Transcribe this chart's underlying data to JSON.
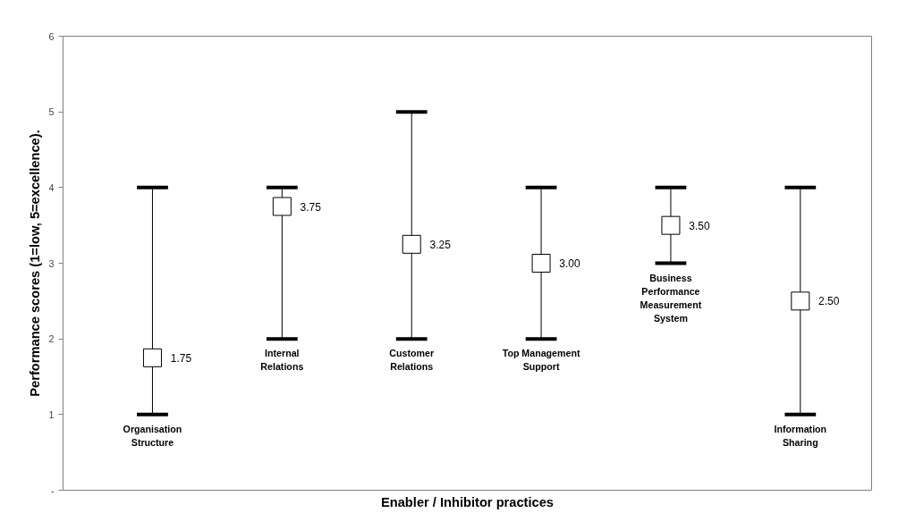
{
  "chart_data": {
    "type": "scatter",
    "xlabel": "Enabler / Inhibitor practices",
    "ylabel": "Performance scores (1=low, 5=excellence).",
    "categories": [
      "Organisation Structure",
      "Internal Relations",
      "Customer Relations",
      "Top Management Support",
      "Business Performance Measurement System",
      "Information Sharing"
    ],
    "values": [
      1.75,
      3.75,
      3.25,
      3.0,
      3.5,
      2.5
    ],
    "errors": [
      [
        1,
        4
      ],
      [
        2,
        4
      ],
      [
        2,
        5
      ],
      [
        2,
        4
      ],
      [
        3,
        4
      ],
      [
        1,
        4
      ]
    ],
    "value_labels": [
      "1.75",
      "3.75",
      "3.25",
      "3.00",
      "3.50",
      "2.50"
    ],
    "color": "#ffffff",
    "marker": "square",
    "ylim": [
      0,
      6
    ],
    "yticks": [
      {
        "value": 0,
        "label": "-"
      },
      1,
      2,
      3,
      4,
      5,
      6
    ],
    "tick_labels": "y",
    "grid": false
  }
}
